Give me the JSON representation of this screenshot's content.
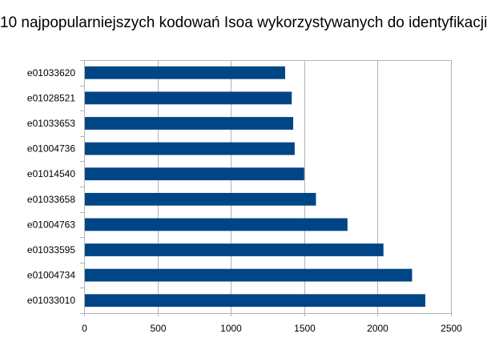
{
  "chart_data": {
    "type": "bar",
    "orientation": "horizontal",
    "title": "10 najpopularniejszych kodowań Isoa wykorzystywanych do identyfikacji",
    "xlabel": "",
    "ylabel": "",
    "categories": [
      "e01033620",
      "e01028521",
      "e01033653",
      "e01004736",
      "e01014540",
      "e01033658",
      "e01004763",
      "e01033595",
      "e01004734",
      "e01033010"
    ],
    "values": [
      1370,
      1415,
      1425,
      1435,
      1500,
      1580,
      1795,
      2040,
      2235,
      2325
    ],
    "xlim": [
      0,
      2500
    ],
    "xticks": [
      "0",
      "500",
      "1000",
      "1500",
      "2000",
      "2500"
    ],
    "grid": "vertical",
    "legend": "none",
    "bar_color": "#004586",
    "grid_color": "#b3b3b3",
    "axis_color": "#b3b3b3"
  }
}
